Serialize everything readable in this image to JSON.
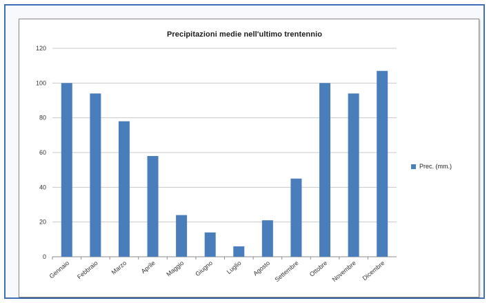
{
  "chart_data": {
    "type": "bar",
    "title": "Precipitazioni medie nell'ultimo trentennio",
    "categories": [
      "Gennaio",
      "Febbraio",
      "Marzo",
      "Aprile",
      "Maggio",
      "Giugno",
      "Luglio",
      "Agosto",
      "Settembre",
      "Ottobre",
      "Novembre",
      "Dicembre"
    ],
    "series": [
      {
        "name": "Prec. (mm.)",
        "values": [
          100,
          94,
          78,
          58,
          24,
          14,
          6,
          21,
          45,
          100,
          94,
          107
        ],
        "color": "#4a7ebb"
      }
    ],
    "xlabel": "",
    "ylabel": "",
    "ylim": [
      0,
      120
    ],
    "yticks": [
      0,
      20,
      40,
      60,
      80,
      100,
      120
    ],
    "grid": true,
    "legend_position": "right"
  }
}
